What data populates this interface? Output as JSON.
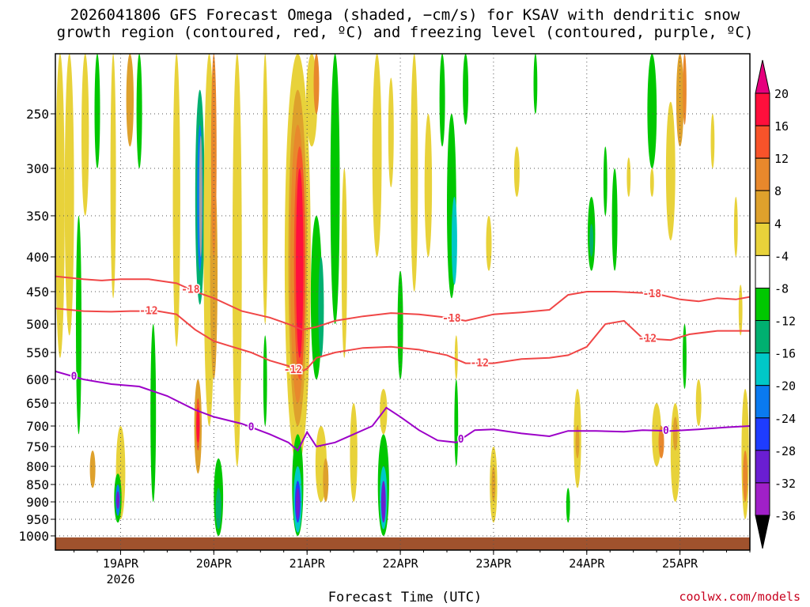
{
  "title_line1": "2026041806 GFS Forecast Omega (shaded, −cm/s) for KSAV with dendritic snow",
  "title_line2": "growth region (contoured, red, ºC) and freezing level (contoured, purple, ºC)",
  "credit": "coolwx.com/models",
  "chart_data": {
    "type": "heatmap",
    "title": "2026041806 GFS Forecast Omega (shaded, −cm/s) for KSAV",
    "xlabel": "Forecast Time (UTC)",
    "ylabel": "",
    "x_day_labels": [
      "19APR",
      "20APR",
      "21APR",
      "22APR",
      "23APR",
      "24APR",
      "25APR"
    ],
    "x_year_label": "2026",
    "x_range_days": [
      18.3,
      25.75
    ],
    "y_ticks": [
      250,
      300,
      350,
      400,
      450,
      500,
      550,
      600,
      650,
      700,
      750,
      800,
      850,
      900,
      950,
      1000
    ],
    "y_range_hPa": [
      200,
      1010
    ],
    "colorbar": {
      "levels": [
        20,
        16,
        12,
        8,
        4,
        -4,
        -8,
        -12,
        -16,
        -20,
        -24,
        -28,
        -32,
        -36
      ],
      "colors": [
        "#ff0f3c",
        "#f7532a",
        "#e8882c",
        "#dea12c",
        "#e8d23a",
        "#ffffff",
        "#00c800",
        "#00b070",
        "#00c8c8",
        "#0a7af0",
        "#1e3cff",
        "#6a1ed2",
        "#a020c8",
        "#a0a0a0"
      ],
      "top_color": "#e6007e",
      "bottom_color": "#000000"
    },
    "contours": [
      {
        "name": "-18C",
        "color": "#f04646",
        "label": "-18",
        "x": [
          18.3,
          18.6,
          18.8,
          19.0,
          19.3,
          19.6,
          19.8,
          20.0,
          20.3,
          20.6,
          20.8,
          20.95,
          21.1,
          21.3,
          21.6,
          21.9,
          22.2,
          22.5,
          22.7,
          23.0,
          23.3,
          23.6,
          23.8,
          24.0,
          24.3,
          24.6,
          24.8,
          25.0,
          25.2,
          25.4,
          25.6,
          25.75
        ],
        "p": [
          428,
          432,
          434,
          432,
          432,
          438,
          450,
          460,
          480,
          490,
          500,
          510,
          505,
          495,
          488,
          483,
          485,
          490,
          495,
          485,
          482,
          478,
          455,
          450,
          450,
          452,
          455,
          462,
          465,
          460,
          462,
          458
        ],
        "labels_at": [
          19.75,
          22.55,
          24.7
        ]
      },
      {
        "name": "-12C",
        "color": "#f04646",
        "label": "-12",
        "x": [
          18.3,
          18.6,
          18.9,
          19.1,
          19.4,
          19.6,
          19.8,
          20.0,
          20.2,
          20.4,
          20.6,
          20.8,
          20.9,
          21.0,
          21.1,
          21.3,
          21.6,
          21.9,
          22.2,
          22.5,
          22.7,
          23.0,
          23.3,
          23.6,
          23.8,
          24.0,
          24.2,
          24.4,
          24.6,
          24.9,
          25.1,
          25.4,
          25.75
        ],
        "p": [
          476,
          480,
          481,
          480,
          480,
          485,
          510,
          530,
          540,
          550,
          565,
          575,
          590,
          580,
          560,
          550,
          542,
          540,
          545,
          555,
          570,
          570,
          562,
          560,
          555,
          540,
          500,
          495,
          525,
          528,
          518,
          512,
          512
        ],
        "labels_at": [
          19.3,
          20.85,
          22.85,
          24.65
        ]
      },
      {
        "name": "0C",
        "color": "#9c00c8",
        "label": "0",
        "x": [
          18.3,
          18.6,
          18.9,
          19.2,
          19.5,
          19.8,
          20.0,
          20.3,
          20.6,
          20.8,
          20.9,
          21.0,
          21.1,
          21.3,
          21.5,
          21.7,
          21.85,
          22.0,
          22.2,
          22.4,
          22.6,
          22.8,
          23.0,
          23.3,
          23.6,
          23.8,
          24.1,
          24.4,
          24.6,
          24.9,
          25.2,
          25.5,
          25.75
        ],
        "p": [
          585,
          600,
          610,
          615,
          635,
          665,
          680,
          695,
          720,
          740,
          760,
          715,
          750,
          740,
          720,
          700,
          660,
          680,
          710,
          735,
          740,
          710,
          708,
          718,
          725,
          712,
          712,
          714,
          710,
          712,
          708,
          703,
          700
        ],
        "labels_at": [
          18.5,
          20.4,
          22.65,
          24.85
        ]
      }
    ],
    "contour_labels": [
      "-18",
      "-12",
      "0"
    ]
  }
}
